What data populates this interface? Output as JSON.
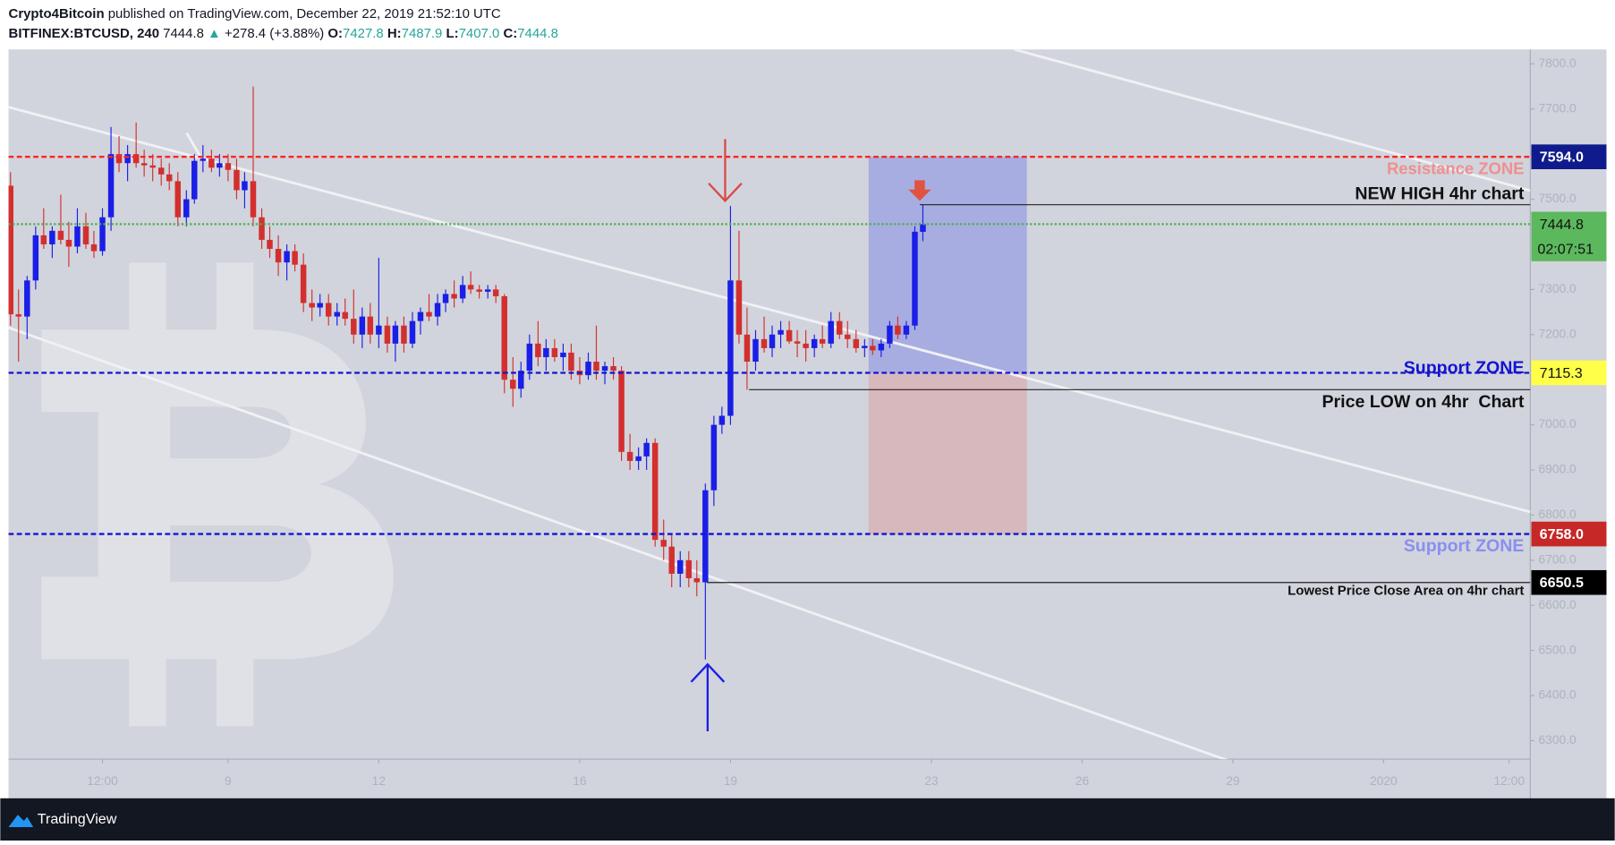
{
  "header": {
    "author": "Crypto4Bitcoin",
    "published": " published on TradingView.com, December 22, 2019 21:52:10 UTC",
    "symbol": "BITFINEX:BTCUSD, 240",
    "last": "7444.8",
    "arrow": "▲",
    "change": "+278.4 (+3.88%)",
    "ohlc": [
      {
        "key": "O:",
        "value": "7427.8"
      },
      {
        "key": "H:",
        "value": "7487.9"
      },
      {
        "key": "L:",
        "value": "7407.0"
      },
      {
        "key": "C:",
        "value": "7444.8"
      }
    ]
  },
  "chart_data": {
    "type": "candlestick",
    "up_color": "#1a1ee6",
    "down_color": "#d32f2f",
    "x": [
      4.67,
      4.83,
      5,
      5.17,
      5.33,
      5.5,
      5.67,
      5.83,
      6,
      6.17,
      6.33,
      6.5,
      6.67,
      6.83,
      7,
      7.17,
      7.33,
      7.5,
      7.67,
      7.83,
      8,
      8.17,
      8.33,
      8.5,
      8.67,
      8.83,
      9,
      9.17,
      9.33,
      9.5,
      9.67,
      9.83,
      10,
      10.17,
      10.33,
      10.5,
      10.67,
      10.83,
      11,
      11.17,
      11.33,
      11.5,
      11.67,
      11.83,
      12,
      12.17,
      12.33,
      12.5,
      12.67,
      12.83,
      13,
      13.17,
      13.33,
      13.5,
      13.67,
      13.83,
      14,
      14.17,
      14.33,
      14.5,
      14.67,
      14.83,
      15,
      15.17,
      15.33,
      15.5,
      15.67,
      15.83,
      16,
      16.17,
      16.33,
      16.5,
      16.67,
      16.83,
      17,
      17.17,
      17.33,
      17.5,
      17.67,
      17.83,
      18,
      18.17,
      18.33,
      18.5,
      18.67,
      18.83,
      19,
      19.17,
      19.33,
      19.5,
      19.67,
      19.83,
      20,
      20.17,
      20.33,
      20.5,
      20.67,
      20.83,
      21,
      21.17,
      21.33,
      21.5,
      21.67,
      21.83,
      22,
      22.17,
      22.33,
      22.5,
      22.67,
      22.83
    ],
    "open": [
      7530,
      7245,
      7240,
      7320,
      7420,
      7400,
      7430,
      7410,
      7395,
      7440,
      7400,
      7385,
      7460,
      7600,
      7580,
      7600,
      7580,
      7575,
      7570,
      7555,
      7540,
      7460,
      7500,
      7585,
      7590,
      7570,
      7580,
      7565,
      7520,
      7540,
      7460,
      7410,
      7390,
      7360,
      7385,
      7355,
      7270,
      7260,
      7270,
      7240,
      7250,
      7235,
      7200,
      7240,
      7200,
      7220,
      7180,
      7220,
      7180,
      7230,
      7250,
      7240,
      7270,
      7290,
      7280,
      7310,
      7300,
      7295,
      7300,
      7285,
      7100,
      7080,
      7120,
      7180,
      7150,
      7170,
      7150,
      7160,
      7120,
      7110,
      7140,
      7120,
      7130,
      7120,
      6940,
      6920,
      6930,
      6960,
      6745,
      6730,
      6670,
      6700,
      6660,
      6651,
      6855,
      7000,
      7020,
      7320,
      7200,
      7140,
      7190,
      7170,
      7200,
      7210,
      7185,
      7180,
      7170,
      7190,
      7180,
      7230,
      7200,
      7190,
      7170,
      7175,
      7165,
      7180,
      7220,
      7200,
      7220,
      7427.8
    ],
    "high": [
      7560,
      7300,
      7330,
      7440,
      7480,
      7440,
      7510,
      7450,
      7480,
      7470,
      7430,
      7480,
      7660,
      7640,
      7620,
      7670,
      7610,
      7600,
      7590,
      7580,
      7560,
      7520,
      7600,
      7620,
      7610,
      7600,
      7600,
      7590,
      7560,
      7750,
      7480,
      7440,
      7420,
      7400,
      7400,
      7380,
      7300,
      7290,
      7290,
      7270,
      7280,
      7300,
      7260,
      7270,
      7370,
      7240,
      7230,
      7240,
      7250,
      7260,
      7290,
      7290,
      7300,
      7320,
      7330,
      7340,
      7310,
      7310,
      7310,
      7290,
      7150,
      7140,
      7200,
      7230,
      7190,
      7190,
      7180,
      7180,
      7150,
      7160,
      7220,
      7140,
      7150,
      7130,
      6980,
      6950,
      6970,
      6970,
      6790,
      6760,
      6720,
      6720,
      6700,
      6870,
      7020,
      7040,
      7485,
      7430,
      7260,
      7210,
      7240,
      7220,
      7230,
      7230,
      7210,
      7210,
      7200,
      7220,
      7250,
      7250,
      7230,
      7210,
      7190,
      7190,
      7190,
      7230,
      7240,
      7230,
      7440,
      7487.9
    ],
    "low": [
      7220,
      7140,
      7190,
      7300,
      7390,
      7370,
      7400,
      7350,
      7380,
      7390,
      7370,
      7375,
      7430,
      7560,
      7540,
      7570,
      7550,
      7540,
      7530,
      7520,
      7440,
      7440,
      7490,
      7560,
      7560,
      7550,
      7540,
      7500,
      7480,
      7440,
      7390,
      7370,
      7330,
      7320,
      7340,
      7250,
      7230,
      7240,
      7220,
      7220,
      7220,
      7180,
      7170,
      7180,
      7170,
      7160,
      7140,
      7160,
      7170,
      7200,
      7230,
      7220,
      7250,
      7260,
      7270,
      7290,
      7280,
      7280,
      7270,
      7070,
      7040,
      7060,
      7100,
      7130,
      7120,
      7140,
      7120,
      7100,
      7090,
      7100,
      7100,
      7090,
      7100,
      6920,
      6900,
      6900,
      6900,
      6730,
      6700,
      6640,
      6640,
      6640,
      6620,
      6480,
      6820,
      6980,
      7000,
      7180,
      7078,
      7120,
      7160,
      7150,
      7170,
      7180,
      7150,
      7140,
      7150,
      7170,
      7170,
      7190,
      7170,
      7160,
      7150,
      7155,
      7150,
      7170,
      7190,
      7190,
      7210,
      7407
    ],
    "close": [
      7245,
      7240,
      7320,
      7420,
      7400,
      7430,
      7410,
      7395,
      7440,
      7400,
      7385,
      7460,
      7600,
      7580,
      7600,
      7580,
      7575,
      7570,
      7555,
      7540,
      7460,
      7500,
      7585,
      7590,
      7570,
      7580,
      7565,
      7520,
      7540,
      7460,
      7410,
      7390,
      7360,
      7385,
      7355,
      7270,
      7260,
      7270,
      7240,
      7250,
      7235,
      7200,
      7240,
      7200,
      7220,
      7180,
      7220,
      7180,
      7230,
      7250,
      7240,
      7270,
      7290,
      7280,
      7310,
      7300,
      7295,
      7300,
      7285,
      7100,
      7080,
      7120,
      7180,
      7150,
      7170,
      7150,
      7160,
      7120,
      7110,
      7140,
      7120,
      7130,
      7120,
      6940,
      6920,
      6930,
      6960,
      6745,
      6730,
      6670,
      6700,
      6660,
      6651,
      6855,
      7000,
      7020,
      7320,
      7200,
      7140,
      7190,
      7170,
      7200,
      7210,
      7185,
      7180,
      7170,
      7190,
      7180,
      7230,
      7200,
      7190,
      7170,
      7175,
      7165,
      7180,
      7220,
      7200,
      7220,
      7428,
      7444.8
    ],
    "xlim": [
      4.63,
      34.92
    ],
    "xticks": [
      {
        "value": 6.5,
        "label": "12:00"
      },
      9,
      12,
      16,
      19,
      23,
      26,
      29,
      {
        "value": 32,
        "label": "2020"
      },
      {
        "value": 34.5,
        "label": "12:00"
      }
    ],
    "ylim": [
      6259,
      7832
    ],
    "yticks": [
      {
        "value": 6300,
        "label": "6300.0"
      },
      {
        "value": 6400,
        "label": "6400.0"
      },
      {
        "value": 6500,
        "label": "6500.0"
      },
      {
        "value": 6600,
        "label": "6600.0"
      },
      {
        "value": 6700,
        "label": "6700.0"
      },
      {
        "value": 6800,
        "label": "6800.0"
      },
      {
        "value": 6900,
        "label": "6900.0"
      },
      {
        "value": 7000,
        "label": "7000.0"
      },
      {
        "value": 7100,
        "label": "7100.0"
      },
      {
        "value": 7200,
        "label": "7200.0"
      },
      {
        "value": 7300,
        "label": "7300.0"
      },
      {
        "value": 7400,
        "label": "7400.0"
      },
      {
        "value": 7500,
        "label": "7500.0"
      },
      {
        "value": 7600,
        "label": "7600.0"
      },
      {
        "value": 7700,
        "label": "7700.0"
      },
      {
        "value": 7800,
        "label": "7800.0"
      }
    ],
    "levels": [
      {
        "value": 7594,
        "label": "7594.0",
        "color": "#ff2424",
        "style": "dashed",
        "tag_color": "#0f1a8c",
        "tag_text": "#ffffff"
      },
      {
        "value": 7444.8,
        "label": "7444.8",
        "countdown": "02:07:51",
        "color": "#4caf50",
        "style": "dotted",
        "tag_color": "#5cb85c",
        "tag_text": "#111111"
      },
      {
        "value": 7115.3,
        "label": "7115.3",
        "color": "#1414d2",
        "style": "dashed",
        "tag_color": "#ffff4a",
        "tag_text": "#111111"
      },
      {
        "value": 6758,
        "label": "6758.0",
        "color": "#1414d2",
        "style": "dashed",
        "tag_color": "#c62828",
        "tag_text": "#ffffff"
      },
      {
        "value": 6650.5,
        "label": "6650.5",
        "from": 18.53,
        "color": "#222222",
        "style": "solid",
        "tag_color": "#000000",
        "tag_text": "#ffffff"
      },
      {
        "value": 7487.9,
        "from": 22.77,
        "color": "#222222",
        "style": "solid"
      },
      {
        "value": 7078,
        "from": 19.37,
        "color": "#222222",
        "style": "solid"
      }
    ],
    "position": {
      "from": 21.75,
      "to": 24.9,
      "target": 7594,
      "entry": 7115.3,
      "stop": 6758
    },
    "annotations": [
      "Resistance ZONE",
      "NEW HIGH 4hr chart",
      "Support ZONE",
      "Price LOW on 4hr  Chart",
      "Support ZONE",
      "Lowest Price Close Area on 4hr chart"
    ]
  },
  "footer": {
    "brand": "TradingView"
  }
}
